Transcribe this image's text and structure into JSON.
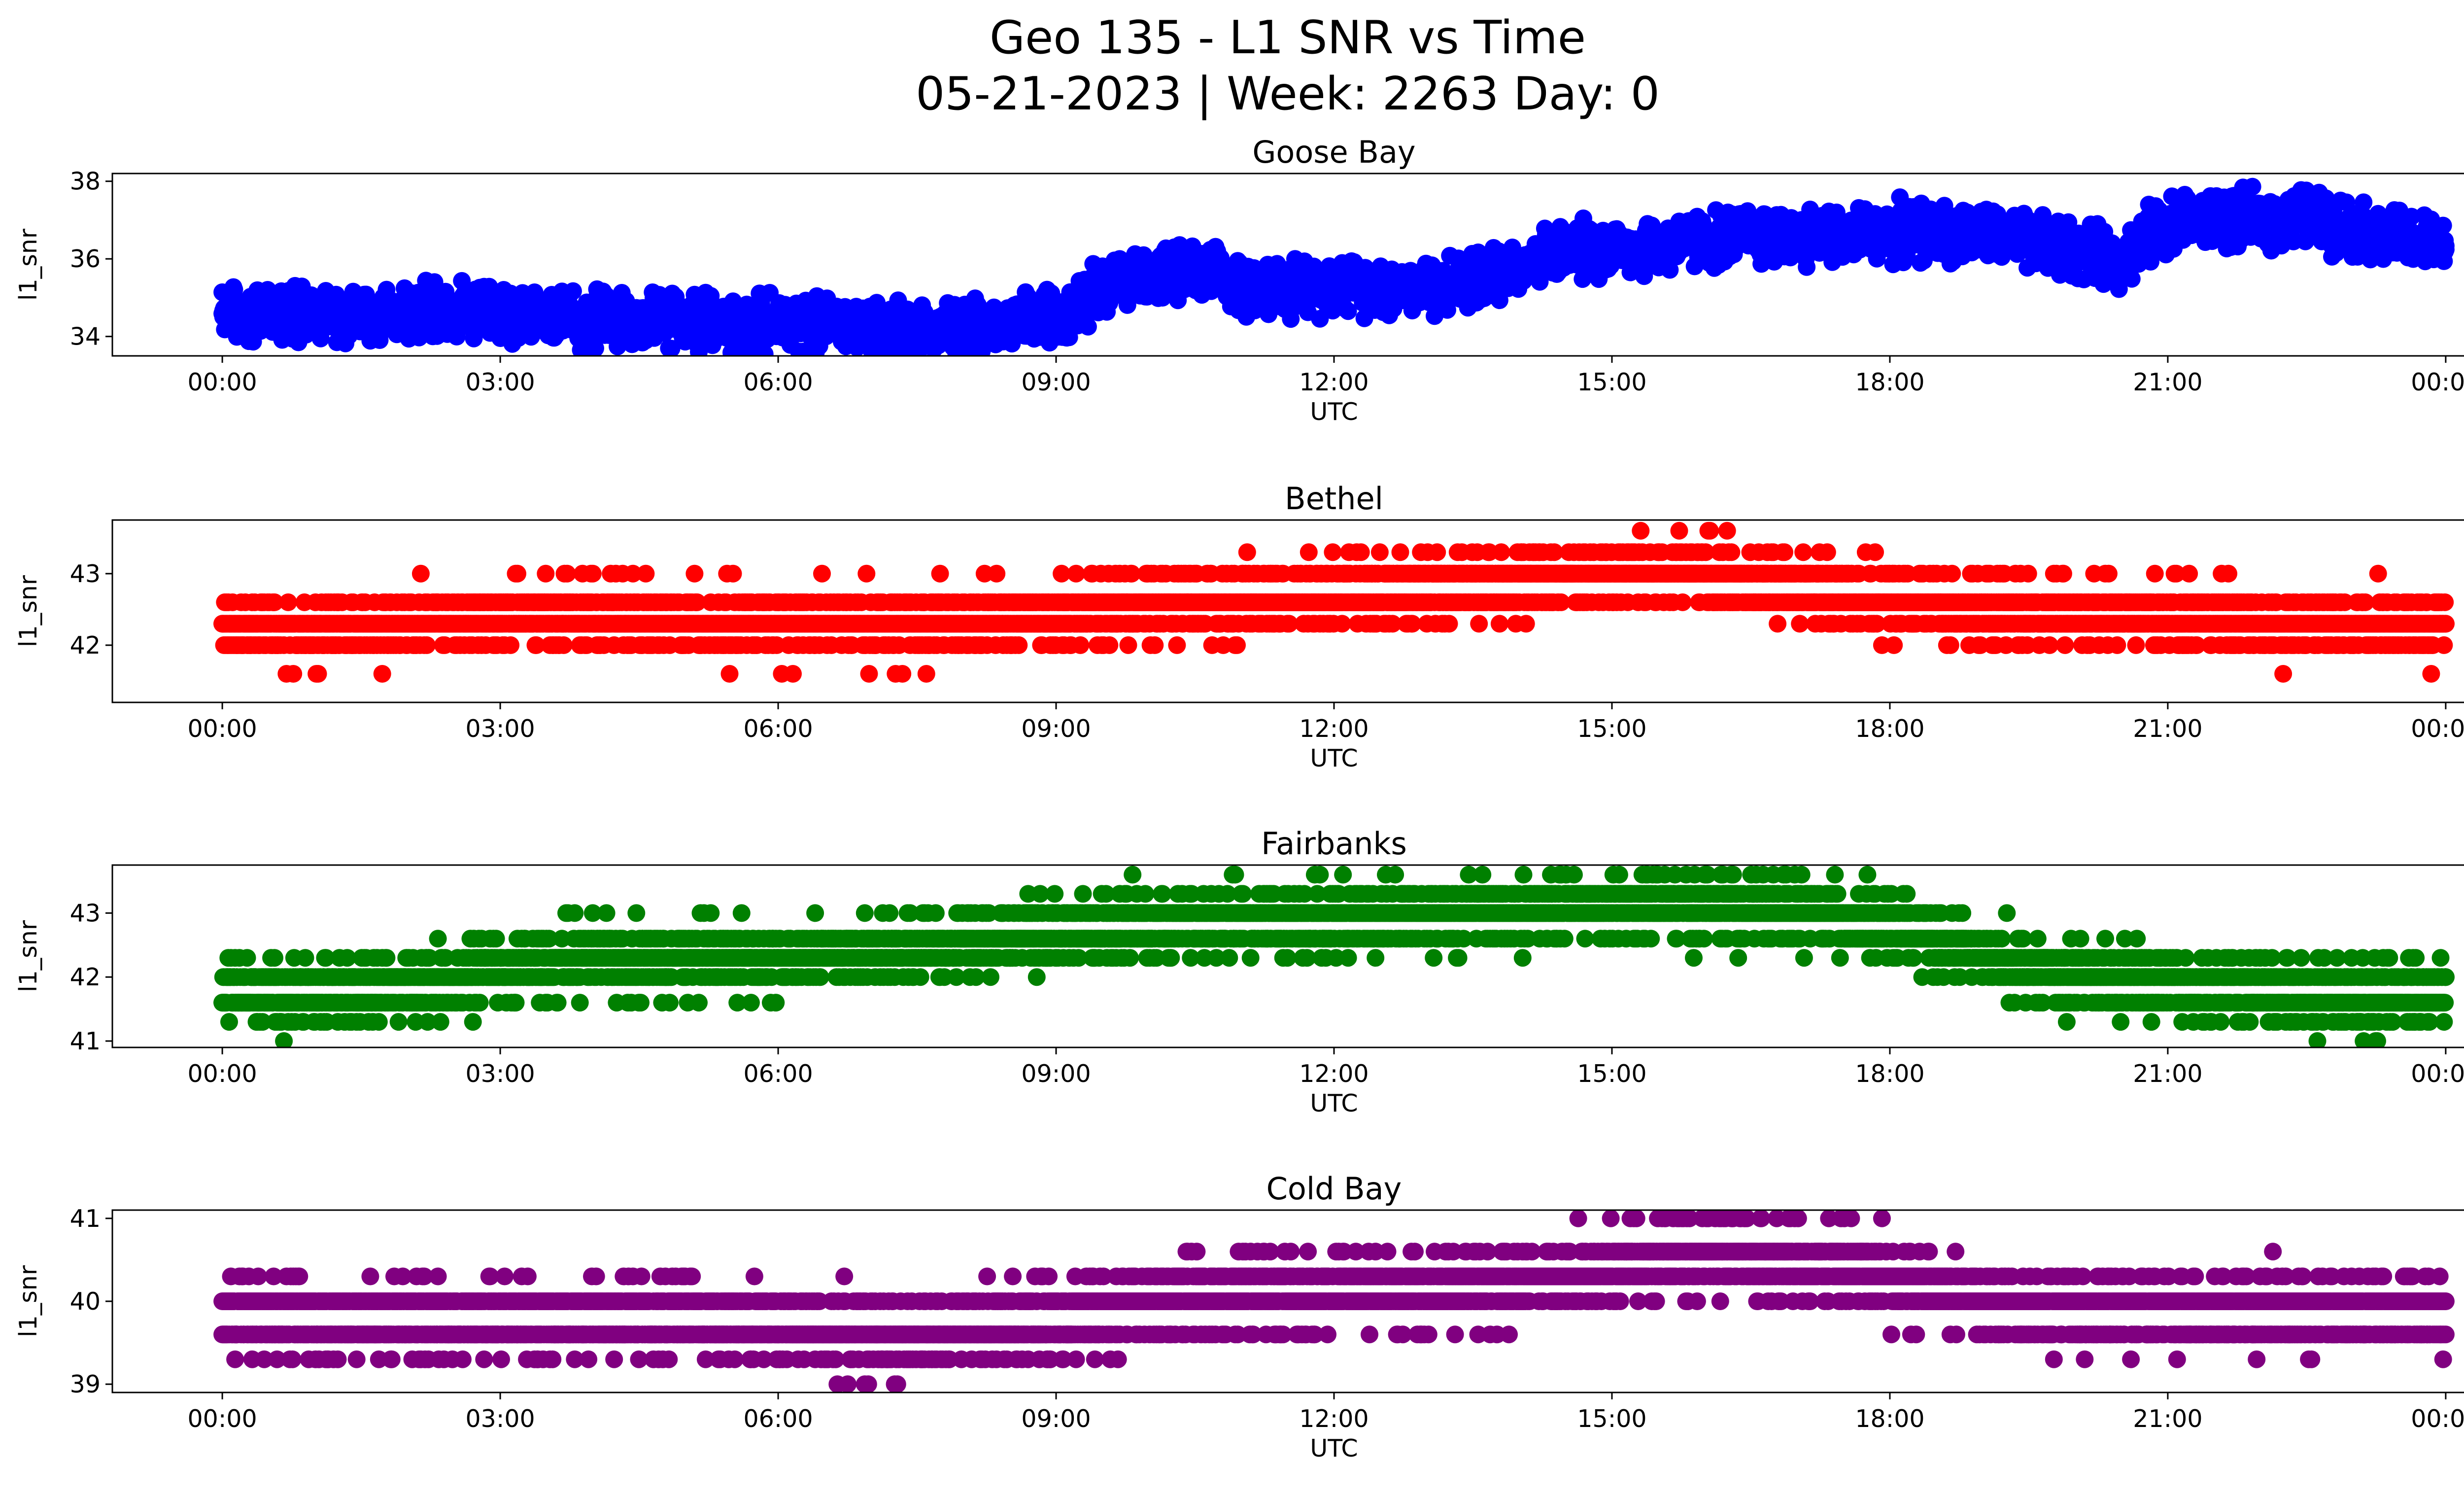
{
  "figure": {
    "title_line1": "Geo 135 - L1 SNR vs Time",
    "title_line2": "05-21-2023 | Week: 2263 Day: 0"
  },
  "chart_data": [
    {
      "type": "scatter",
      "title": "Goose Bay",
      "xlabel": "UTC",
      "ylabel": "l1_snr",
      "color": "#0000ff",
      "xlim": [
        "00:00",
        "24:00"
      ],
      "ylim": [
        33.5,
        38.2
      ],
      "yticks": [
        "34",
        "36",
        "38"
      ],
      "xticks": [
        "00:00",
        "03:00",
        "06:00",
        "09:00",
        "12:00",
        "15:00",
        "18:00",
        "21:00",
        "00:00"
      ],
      "series": [
        {
          "points": [
            [
              "00:00",
              34.6
            ],
            [
              "00:30",
              34.6
            ],
            [
              "01:00",
              34.6
            ],
            [
              "01:30",
              34.6
            ],
            [
              "02:00",
              34.6
            ],
            [
              "02:30",
              34.6
            ],
            [
              "03:00",
              34.6
            ],
            [
              "03:30",
              34.4
            ],
            [
              "04:00",
              34.4
            ],
            [
              "04:30",
              34.4
            ],
            [
              "05:00",
              34.4
            ],
            [
              "05:30",
              34.3
            ],
            [
              "06:00",
              34.3
            ],
            [
              "06:30",
              34.3
            ],
            [
              "07:00",
              34.3
            ],
            [
              "07:30",
              34.2
            ],
            [
              "08:00",
              34.2
            ],
            [
              "08:30",
              34.3
            ],
            [
              "09:00",
              34.6
            ],
            [
              "09:30",
              35.3
            ],
            [
              "10:00",
              35.6
            ],
            [
              "10:30",
              35.6
            ],
            [
              "11:00",
              35.3
            ],
            [
              "11:30",
              35.3
            ],
            [
              "12:00",
              35.3
            ],
            [
              "12:30",
              35.3
            ],
            [
              "13:00",
              35.3
            ],
            [
              "13:30",
              35.4
            ],
            [
              "14:00",
              35.9
            ],
            [
              "14:30",
              36.2
            ],
            [
              "15:00",
              36.3
            ],
            [
              "15:30",
              36.3
            ],
            [
              "16:00",
              36.5
            ],
            [
              "16:30",
              36.6
            ],
            [
              "17:00",
              36.6
            ],
            [
              "17:30",
              36.6
            ],
            [
              "18:00",
              36.7
            ],
            [
              "18:30",
              36.7
            ],
            [
              "19:00",
              36.6
            ],
            [
              "19:30",
              36.4
            ],
            [
              "20:00",
              36.2
            ],
            [
              "20:30",
              36.0
            ],
            [
              "21:00",
              37.0
            ],
            [
              "21:30",
              37.0
            ],
            [
              "22:00",
              37.0
            ],
            [
              "22:30",
              37.1
            ],
            [
              "23:00",
              36.8
            ],
            [
              "23:30",
              36.5
            ],
            [
              "24:00",
              36.3
            ]
          ],
          "spread": 0.9
        }
      ]
    },
    {
      "type": "scatter",
      "title": "Bethel",
      "xlabel": "UTC",
      "ylabel": "l1_snr",
      "color": "#ff0000",
      "xlim": [
        "00:00",
        "24:00"
      ],
      "ylim": [
        41.2,
        43.75
      ],
      "yticks": [
        "42",
        "43"
      ],
      "xticks": [
        "00:00",
        "03:00",
        "06:00",
        "09:00",
        "12:00",
        "15:00",
        "18:00",
        "21:00",
        "00:00"
      ],
      "series": [
        {
          "points": [
            [
              "00:00",
              42.3
            ],
            [
              "01:00",
              42.2
            ],
            [
              "02:00",
              42.3
            ],
            [
              "03:00",
              42.4
            ],
            [
              "04:00",
              42.4
            ],
            [
              "05:00",
              42.3
            ],
            [
              "06:00",
              42.3
            ],
            [
              "07:00",
              42.3
            ],
            [
              "08:00",
              42.3
            ],
            [
              "09:00",
              42.4
            ],
            [
              "10:00",
              42.6
            ],
            [
              "11:00",
              42.6
            ],
            [
              "12:00",
              42.7
            ],
            [
              "13:00",
              42.8
            ],
            [
              "14:00",
              42.9
            ],
            [
              "15:00",
              43.0
            ],
            [
              "16:00",
              43.0
            ],
            [
              "17:00",
              42.8
            ],
            [
              "18:00",
              42.6
            ],
            [
              "19:00",
              42.5
            ],
            [
              "20:00",
              42.4
            ],
            [
              "21:00",
              42.4
            ],
            [
              "22:00",
              42.3
            ],
            [
              "23:00",
              42.3
            ],
            [
              "24:00",
              42.3
            ]
          ],
          "levels": [
            41.6,
            42.0,
            42.3,
            42.6,
            43.0,
            43.3,
            43.6
          ],
          "spread": 0.6
        }
      ]
    },
    {
      "type": "scatter",
      "title": "Fairbanks",
      "xlabel": "UTC",
      "ylabel": "l1_snr",
      "color": "#008000",
      "xlim": [
        "00:00",
        "24:00"
      ],
      "ylim": [
        40.9,
        43.75
      ],
      "yticks": [
        "41",
        "42",
        "43"
      ],
      "xticks": [
        "00:00",
        "03:00",
        "06:00",
        "09:00",
        "12:00",
        "15:00",
        "18:00",
        "21:00",
        "00:00"
      ],
      "series": [
        {
          "points": [
            [
              "00:00",
              41.8
            ],
            [
              "01:00",
              41.7
            ],
            [
              "02:00",
              41.9
            ],
            [
              "03:00",
              42.1
            ],
            [
              "04:00",
              42.3
            ],
            [
              "05:00",
              42.3
            ],
            [
              "06:00",
              42.3
            ],
            [
              "07:00",
              42.4
            ],
            [
              "08:00",
              42.5
            ],
            [
              "09:00",
              42.7
            ],
            [
              "10:00",
              42.8
            ],
            [
              "11:00",
              42.9
            ],
            [
              "12:00",
              42.9
            ],
            [
              "13:00",
              43.0
            ],
            [
              "14:00",
              43.0
            ],
            [
              "15:00",
              43.1
            ],
            [
              "16:00",
              43.1
            ],
            [
              "17:00",
              43.0
            ],
            [
              "18:00",
              42.8
            ],
            [
              "19:00",
              42.3
            ],
            [
              "20:00",
              42.0
            ],
            [
              "21:00",
              41.9
            ],
            [
              "22:00",
              41.8
            ],
            [
              "23:00",
              41.7
            ],
            [
              "24:00",
              41.7
            ]
          ],
          "levels": [
            41.0,
            41.3,
            41.6,
            42.0,
            42.3,
            42.6,
            43.0,
            43.3,
            43.6
          ],
          "spread": 0.7
        }
      ]
    },
    {
      "type": "scatter",
      "title": "Cold Bay",
      "xlabel": "UTC",
      "ylabel": "l1_snr",
      "color": "#800080",
      "xlim": [
        "00:00",
        "24:00"
      ],
      "ylim": [
        38.9,
        41.1
      ],
      "yticks": [
        "39",
        "40",
        "41"
      ],
      "xticks": [
        "00:00",
        "03:00",
        "06:00",
        "09:00",
        "12:00",
        "15:00",
        "18:00",
        "21:00",
        "00:00"
      ],
      "series": [
        {
          "points": [
            [
              "00:00",
              39.9
            ],
            [
              "01:00",
              39.8
            ],
            [
              "02:00",
              39.8
            ],
            [
              "03:00",
              39.8
            ],
            [
              "04:00",
              39.8
            ],
            [
              "05:00",
              39.8
            ],
            [
              "06:00",
              39.7
            ],
            [
              "07:00",
              39.6
            ],
            [
              "08:00",
              39.6
            ],
            [
              "09:00",
              39.8
            ],
            [
              "10:00",
              40.0
            ],
            [
              "11:00",
              40.1
            ],
            [
              "12:00",
              40.1
            ],
            [
              "13:00",
              40.1
            ],
            [
              "14:00",
              40.2
            ],
            [
              "15:00",
              40.4
            ],
            [
              "16:00",
              40.6
            ],
            [
              "17:00",
              40.5
            ],
            [
              "18:00",
              40.3
            ],
            [
              "19:00",
              40.0
            ],
            [
              "20:00",
              39.9
            ],
            [
              "21:00",
              39.9
            ],
            [
              "22:00",
              39.9
            ],
            [
              "23:00",
              39.9
            ],
            [
              "24:00",
              39.9
            ]
          ],
          "levels": [
            39.0,
            39.3,
            39.6,
            40.0,
            40.3,
            40.6,
            41.0
          ],
          "spread": 0.6
        }
      ]
    }
  ]
}
